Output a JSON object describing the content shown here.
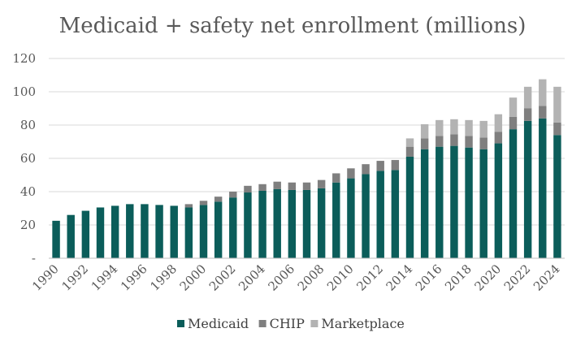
{
  "chart_data": {
    "type": "bar",
    "stacked": true,
    "title": "Medicaid + safety net enrollment (millions)",
    "xlabel": "",
    "ylabel": "",
    "ylim": [
      0,
      120
    ],
    "yticks": [
      {
        "value": 0,
        "label": "-"
      },
      {
        "value": 20,
        "label": "20"
      },
      {
        "value": 40,
        "label": "40"
      },
      {
        "value": 60,
        "label": "60"
      },
      {
        "value": 80,
        "label": "80"
      },
      {
        "value": 100,
        "label": "100"
      },
      {
        "value": 120,
        "label": "120"
      }
    ],
    "grid": true,
    "legend_position": "bottom",
    "categories": [
      "1990",
      "1991",
      "1992",
      "1993",
      "1994",
      "1995",
      "1996",
      "1997",
      "1998",
      "1999",
      "2000",
      "2001",
      "2002",
      "2003",
      "2004",
      "2005",
      "2006",
      "2007",
      "2008",
      "2009",
      "2010",
      "2011",
      "2012",
      "2013",
      "2014",
      "2015",
      "2016",
      "2017",
      "2018",
      "2019",
      "2020",
      "2021",
      "2022",
      "2023",
      "2024"
    ],
    "x_tick_labels": [
      "1990",
      "",
      "1992",
      "",
      "1994",
      "",
      "1996",
      "",
      "1998",
      "",
      "2000",
      "",
      "2002",
      "",
      "2004",
      "",
      "2006",
      "",
      "2008",
      "",
      "2010",
      "",
      "2012",
      "",
      "2014",
      "",
      "2016",
      "",
      "2018",
      "",
      "2020",
      "",
      "2022",
      "",
      "2024"
    ],
    "series": [
      {
        "name": "Medicaid",
        "color": "#0b5d5a",
        "values": [
          22.5,
          26,
          28.5,
          30.5,
          31.5,
          32.5,
          32.5,
          32,
          31.5,
          30.5,
          32,
          34,
          36.5,
          39.5,
          40.5,
          41.5,
          41,
          41,
          42,
          45.5,
          48,
          50.5,
          52.5,
          53,
          61,
          65.5,
          67,
          67.5,
          66.5,
          65.5,
          69,
          77.5,
          82.5,
          84,
          74
        ]
      },
      {
        "name": "CHIP",
        "color": "#7f7f7f",
        "values": [
          0,
          0,
          0,
          0,
          0,
          0,
          0,
          0,
          0,
          2,
          2.5,
          3,
          3.5,
          4,
          4,
          4.5,
          4.5,
          4.5,
          5,
          5.5,
          6,
          6,
          6,
          6,
          6,
          6.5,
          6.5,
          7,
          7,
          7,
          7,
          7.5,
          7.5,
          7.5,
          7.5
        ]
      },
      {
        "name": "Marketplace",
        "color": "#b3b3b3",
        "values": [
          0,
          0,
          0,
          0,
          0,
          0,
          0,
          0,
          0,
          0,
          0,
          0,
          0,
          0,
          0,
          0,
          0,
          0,
          0,
          0,
          0,
          0,
          0,
          0,
          5,
          8.5,
          9.5,
          9,
          9.5,
          10,
          10.5,
          11.5,
          13,
          16,
          21.5
        ]
      }
    ]
  }
}
